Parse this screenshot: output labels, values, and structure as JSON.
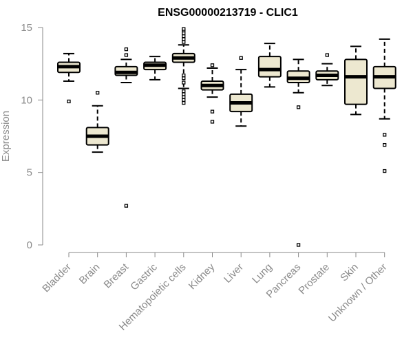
{
  "chart_data": {
    "type": "box",
    "title": "ENSG00000213719 - CLIC1",
    "ylabel": "Expression",
    "xlabel": "",
    "ylim": [
      0,
      15
    ],
    "yticks": [
      0,
      5,
      10,
      15
    ],
    "box_fill": "#ede8d0",
    "categories": [
      "Bladder",
      "Brain",
      "Breast",
      "Gastric",
      "Hematopoietic cells",
      "Kidney",
      "Liver",
      "Lung",
      "Pancreas",
      "Prostate",
      "Skin",
      "Unknown / Other"
    ],
    "boxes": [
      {
        "category": "Bladder",
        "whisker_low": 11.3,
        "q1": 11.9,
        "median": 12.3,
        "q3": 12.6,
        "whisker_high": 13.2,
        "outliers": [
          9.9
        ]
      },
      {
        "category": "Brain",
        "whisker_low": 6.4,
        "q1": 6.9,
        "median": 7.5,
        "q3": 8.1,
        "whisker_high": 9.6,
        "outliers": [
          10.5
        ]
      },
      {
        "category": "Breast",
        "whisker_low": 11.2,
        "q1": 11.7,
        "median": 11.9,
        "q3": 12.3,
        "whisker_high": 12.8,
        "outliers": [
          2.7,
          13.1,
          13.5
        ]
      },
      {
        "category": "Gastric",
        "whisker_low": 11.4,
        "q1": 12.1,
        "median": 12.4,
        "q3": 12.6,
        "whisker_high": 13.0,
        "outliers": []
      },
      {
        "category": "Hematopoietic cells",
        "whisker_low": 10.8,
        "q1": 12.6,
        "median": 12.9,
        "q3": 13.2,
        "whisker_high": 13.8,
        "outliers": [
          9.8,
          10.0,
          10.2,
          10.4,
          10.6,
          11.2,
          11.5,
          11.7,
          14.0,
          14.2,
          14.4,
          14.6,
          14.8,
          14.9
        ]
      },
      {
        "category": "Kidney",
        "whisker_low": 10.2,
        "q1": 10.7,
        "median": 11.0,
        "q3": 11.3,
        "whisker_high": 12.2,
        "outliers": [
          8.5,
          9.2,
          12.4
        ]
      },
      {
        "category": "Liver",
        "whisker_low": 8.2,
        "q1": 9.2,
        "median": 9.8,
        "q3": 10.4,
        "whisker_high": 12.1,
        "outliers": [
          12.9
        ]
      },
      {
        "category": "Lung",
        "whisker_low": 10.9,
        "q1": 11.6,
        "median": 12.1,
        "q3": 13.0,
        "whisker_high": 13.9,
        "outliers": []
      },
      {
        "category": "Pancreas",
        "whisker_low": 10.5,
        "q1": 11.2,
        "median": 11.5,
        "q3": 12.0,
        "whisker_high": 12.8,
        "outliers": [
          0.0,
          9.5
        ]
      },
      {
        "category": "Prostate",
        "whisker_low": 11.0,
        "q1": 11.4,
        "median": 11.7,
        "q3": 12.0,
        "whisker_high": 12.5,
        "outliers": [
          13.1
        ]
      },
      {
        "category": "Skin",
        "whisker_low": 9.0,
        "q1": 9.7,
        "median": 11.6,
        "q3": 12.8,
        "whisker_high": 13.7,
        "outliers": []
      },
      {
        "category": "Unknown / Other",
        "whisker_low": 8.7,
        "q1": 10.8,
        "median": 11.6,
        "q3": 12.3,
        "whisker_high": 14.2,
        "outliers": [
          5.1,
          6.9,
          7.6
        ]
      }
    ]
  }
}
